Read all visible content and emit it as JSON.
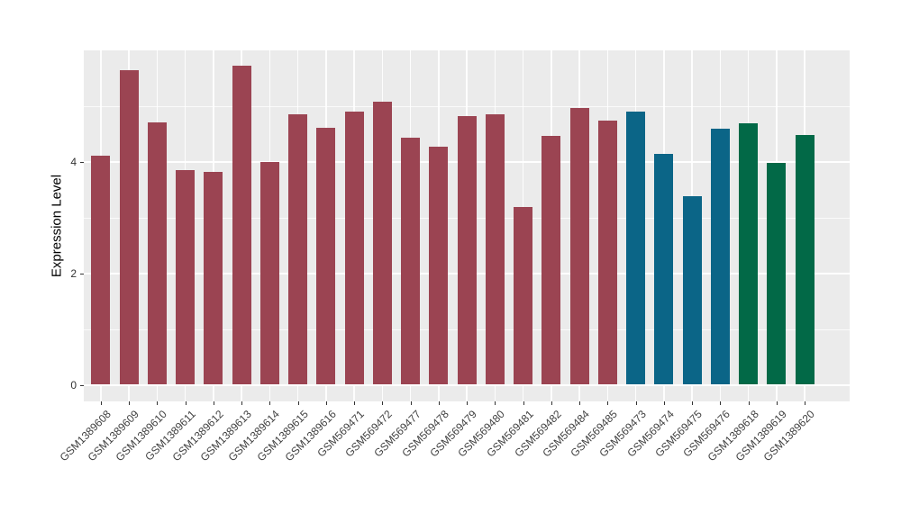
{
  "chart_data": {
    "type": "bar",
    "title": "",
    "xlabel": "",
    "ylabel": "Expression Level",
    "categories": [
      "GSM1389608",
      "GSM1389609",
      "GSM1389610",
      "GSM1389611",
      "GSM1389612",
      "GSM1389613",
      "GSM1389614",
      "GSM1389615",
      "GSM1389616",
      "GSM569471",
      "GSM569472",
      "GSM569477",
      "GSM569478",
      "GSM569479",
      "GSM569480",
      "GSM569481",
      "GSM569482",
      "GSM569484",
      "GSM569485",
      "GSM569473",
      "GSM569474",
      "GSM569475",
      "GSM569476",
      "GSM1389618",
      "GSM1389619",
      "GSM1389620"
    ],
    "values": [
      4.11,
      5.64,
      4.71,
      3.86,
      3.82,
      5.73,
      4.0,
      4.85,
      4.62,
      4.9,
      5.08,
      4.43,
      4.27,
      4.82,
      4.86,
      3.19,
      4.47,
      4.96,
      4.74,
      4.91,
      4.14,
      3.38,
      4.59,
      4.7,
      3.98,
      4.48
    ],
    "bar_groups": [
      0,
      0,
      0,
      0,
      0,
      0,
      0,
      0,
      0,
      0,
      0,
      0,
      0,
      0,
      0,
      0,
      0,
      0,
      0,
      1,
      1,
      1,
      1,
      2,
      2,
      2
    ],
    "group_colors": [
      "#9B4452",
      "#0B6587",
      "#026947"
    ],
    "yticks": [
      0,
      2,
      4
    ],
    "minor_yticks": [
      1,
      3,
      5
    ],
    "ylim": [
      0,
      6.0
    ],
    "grid": true,
    "legend": "none",
    "x_tick_rotation": 45,
    "panel_background": "#EBEBEB",
    "gridline_color": "#FFFFFF",
    "axis_text_color": "#404040"
  }
}
